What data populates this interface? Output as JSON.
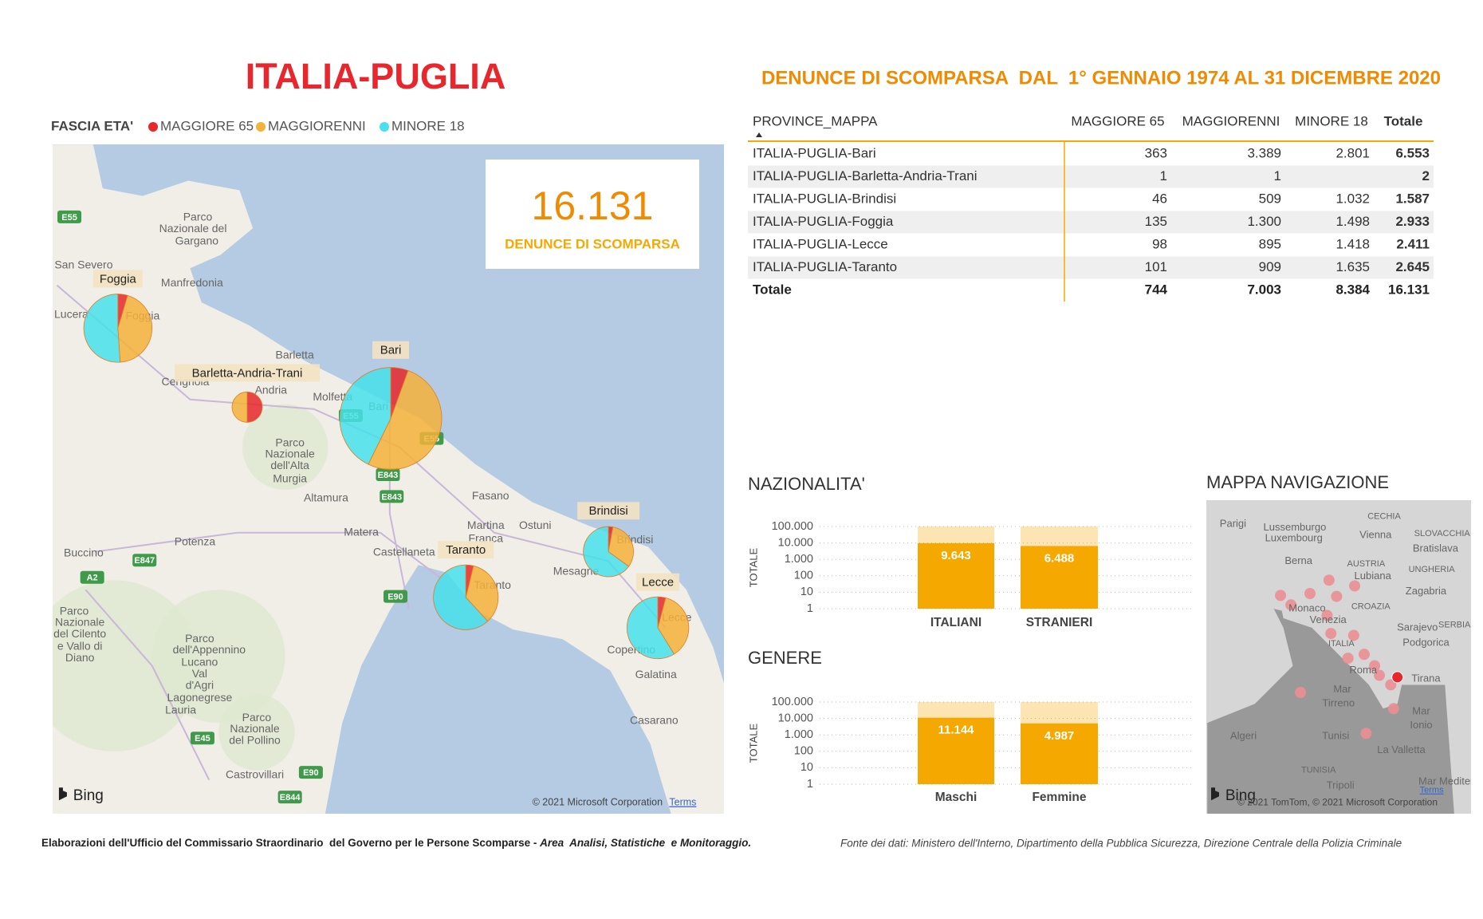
{
  "header": {
    "title": "ITALIA-PUGLIA",
    "subtitle": "DENUNCE DI SCOMPARSA  DAL  1° GENNAIO 1974 AL 31 DICEMBRE 2020"
  },
  "legend": {
    "title": "FASCIA ETA'",
    "items": [
      {
        "label": "MAGGIORE 65",
        "color": "#e8262b"
      },
      {
        "label": "MAGGIORENNI",
        "color": "#f4b23a"
      },
      {
        "label": "MINORE 18",
        "color": "#46e1ea"
      }
    ]
  },
  "kpi": {
    "value": "16.131",
    "label": "DENUNCE DI SCOMPARSA"
  },
  "map": {
    "pie_labels": [
      "Bari",
      "Barletta-Andria-Trani",
      "Brindisi",
      "Foggia",
      "Lecce",
      "Taranto"
    ],
    "places": [
      "Parco",
      "Nazionale del",
      "Gargano",
      "San Severo",
      "Manfredonia",
      "Lucera",
      "Foggia",
      "Barletta",
      "Cerignola",
      "Andria",
      "Molfetta",
      "Bari",
      "Parco",
      "Nazionale",
      "dell'Alta",
      "Murgia",
      "Altamura",
      "Fasano",
      "Matera",
      "Martina",
      "Franca",
      "Ostuni",
      "Potenza",
      "Castellaneta",
      "Mesagne",
      "Brindisi",
      "Taranto",
      "Lecce",
      "Copertino",
      "Galatina",
      "Casarano",
      "Buccino",
      "Parco",
      "Nazionale",
      "del Cilento",
      "e Vallo di",
      "Diano",
      "Parco",
      "dell'Appennino",
      "Lucano",
      "Val",
      "d'Agri",
      "Lagonegrese",
      "Lauria",
      "Parco",
      "Nazionale",
      "del Pollino",
      "Castrovillari"
    ],
    "roads": [
      "E55",
      "E847",
      "A2",
      "E843",
      "E843",
      "E55",
      "E90",
      "E45",
      "E90",
      "E844",
      "E55"
    ],
    "logo": "Bing",
    "copyright": "© 2021 Microsoft Corporation",
    "terms": "Terms"
  },
  "table": {
    "columns": [
      "PROVINCE_MAPPA",
      "MAGGIORE 65",
      "MAGGIORENNI",
      "MINORE 18",
      "Totale"
    ],
    "rows": [
      [
        "ITALIA-PUGLIA-Bari",
        "363",
        "3.389",
        "2.801",
        "6.553"
      ],
      [
        "ITALIA-PUGLIA-Barletta-Andria-Trani",
        "1",
        "1",
        null,
        "2"
      ],
      [
        "ITALIA-PUGLIA-Brindisi",
        "46",
        "509",
        "1.032",
        "1.587"
      ],
      [
        "ITALIA-PUGLIA-Foggia",
        "135",
        "1.300",
        "1.498",
        "2.933"
      ],
      [
        "ITALIA-PUGLIA-Lecce",
        "98",
        "895",
        "1.418",
        "2.411"
      ],
      [
        "ITALIA-PUGLIA-Taranto",
        "101",
        "909",
        "1.635",
        "2.645"
      ]
    ],
    "total": [
      "Totale",
      "744",
      "7.003",
      "8.384",
      "16.131"
    ]
  },
  "chart_data": [
    {
      "type": "bar",
      "title": "NAZIONALITA'",
      "y_label": "TOTALE",
      "categories": [
        "ITALIANI",
        "STRANIERI"
      ],
      "values": [
        9643,
        6488
      ],
      "value_labels": [
        "9.643",
        "6.488"
      ],
      "color": "#f5a800",
      "ylim": [
        1,
        100000
      ],
      "log_scale": true,
      "grid": true,
      "yticks": [
        1,
        10,
        100,
        {
          "value": 1000,
          "label": "1.000"
        },
        {
          "value": 10000,
          "label": "10.000"
        },
        {
          "value": 100000,
          "label": "100.000"
        }
      ]
    },
    {
      "type": "bar",
      "title": "GENERE",
      "y_label": "TOTALE",
      "categories": [
        "Maschi",
        "Femmine"
      ],
      "values": [
        11144,
        4987
      ],
      "value_labels": [
        "11.144",
        "4.987"
      ],
      "color": "#f5a800",
      "ylim": [
        1,
        100000
      ],
      "log_scale": true,
      "grid": true,
      "yticks": [
        1,
        10,
        100,
        {
          "value": 1000,
          "label": "1.000"
        },
        {
          "value": 10000,
          "label": "10.000"
        },
        {
          "value": 100000,
          "label": "100.000"
        }
      ]
    }
  ],
  "nav_map": {
    "title": "MAPPA NAVIGAZIONE",
    "places": [
      "Parigi",
      "Lussemburgo",
      "Luxembourg",
      "CECHIA",
      "SLOVACCHIA",
      "Vienna",
      "Bratislava",
      "AUSTRIA",
      "UNGHERIA",
      "Berna",
      "Lubiana",
      "Zagabria",
      "Monaco",
      "CROAZIA",
      "Venezia",
      "Sarajevo",
      "SERBIA",
      "Podgorica",
      "ITALIA",
      "Roma",
      "Tirana",
      "Mar",
      "Tirreno",
      "Mar",
      "Ionio",
      "Algeri",
      "Tunisi",
      "La Valletta",
      "TUNISIA",
      "Tripoli",
      "Mar Mediterr"
    ],
    "logo": "Bing",
    "copyright": "© 2021 TomTom, © 2021 Microsoft Corporation",
    "terms": "Terms"
  },
  "footer": {
    "credit": "Elaborazioni dell'Ufficio del Commissario Straordinario  del Governo per le Persone Scomparse - ",
    "credit_emphasis": "Area  Analisi, Statistiche  e Monitoraggio.",
    "source": "Fonte dei dati: Ministero dell'Interno, Dipartimento della Pubblica Sicurezza, Direzione Centrale della Polizia Criminale"
  }
}
